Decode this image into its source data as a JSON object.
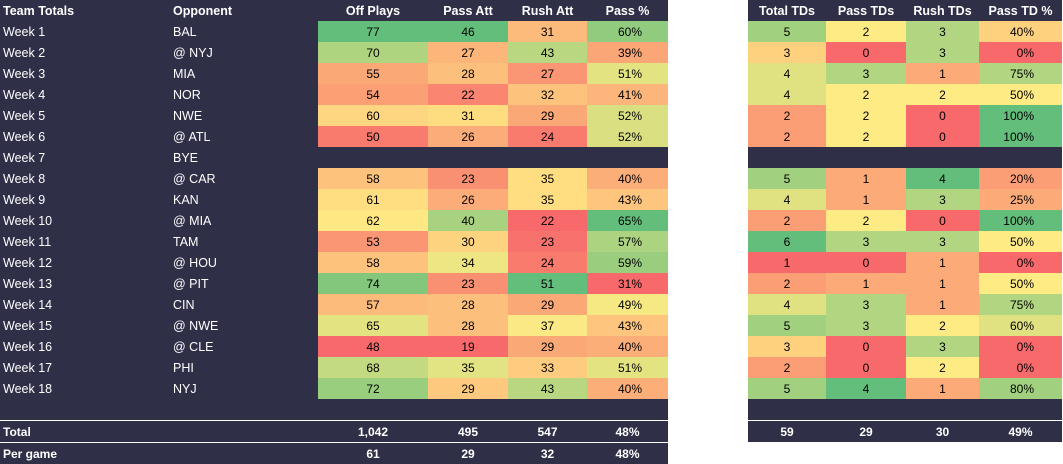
{
  "headers": {
    "team": "Team Totals",
    "opponent": "Opponent",
    "off_plays": "Off Plays",
    "pass_att": "Pass Att",
    "rush_att": "Rush Att",
    "pass_pct": "Pass %",
    "total_tds": "Total TDs",
    "pass_tds": "Pass TDs",
    "rush_tds": "Rush TDs",
    "pass_td_pct": "Pass TD %"
  },
  "colors": {
    "background": "#2f2f48",
    "scale_red": "#f8696b",
    "scale_yellow": "#ffeb84",
    "scale_green": "#63be7b"
  },
  "rows": [
    {
      "week": "Week 1",
      "opp": "BAL",
      "off_plays": "77",
      "pass_att": "46",
      "rush_att": "31",
      "pass_pct": "60%",
      "total_tds": "5",
      "pass_tds": "2",
      "rush_tds": "3",
      "pass_td_pct": "40%",
      "v": [
        77,
        46,
        31,
        60,
        5,
        2,
        3,
        40
      ]
    },
    {
      "week": "Week 2",
      "opp": "@ NYJ",
      "off_plays": "70",
      "pass_att": "27",
      "rush_att": "43",
      "pass_pct": "39%",
      "total_tds": "3",
      "pass_tds": "0",
      "rush_tds": "3",
      "pass_td_pct": "0%",
      "v": [
        70,
        27,
        43,
        39,
        3,
        0,
        3,
        0
      ]
    },
    {
      "week": "Week 3",
      "opp": "MIA",
      "off_plays": "55",
      "pass_att": "28",
      "rush_att": "27",
      "pass_pct": "51%",
      "total_tds": "4",
      "pass_tds": "3",
      "rush_tds": "1",
      "pass_td_pct": "75%",
      "v": [
        55,
        28,
        27,
        51,
        4,
        3,
        1,
        75
      ]
    },
    {
      "week": "Week 4",
      "opp": "NOR",
      "off_plays": "54",
      "pass_att": "22",
      "rush_att": "32",
      "pass_pct": "41%",
      "total_tds": "4",
      "pass_tds": "2",
      "rush_tds": "2",
      "pass_td_pct": "50%",
      "v": [
        54,
        22,
        32,
        41,
        4,
        2,
        2,
        50
      ]
    },
    {
      "week": "Week 5",
      "opp": "NWE",
      "off_plays": "60",
      "pass_att": "31",
      "rush_att": "29",
      "pass_pct": "52%",
      "total_tds": "2",
      "pass_tds": "2",
      "rush_tds": "0",
      "pass_td_pct": "100%",
      "v": [
        60,
        31,
        29,
        52,
        2,
        2,
        0,
        100
      ]
    },
    {
      "week": "Week 6",
      "opp": "@ ATL",
      "off_plays": "50",
      "pass_att": "26",
      "rush_att": "24",
      "pass_pct": "52%",
      "total_tds": "2",
      "pass_tds": "2",
      "rush_tds": "0",
      "pass_td_pct": "100%",
      "v": [
        50,
        26,
        24,
        52,
        2,
        2,
        0,
        100
      ]
    },
    {
      "week": "Week 7",
      "opp": "BYE",
      "bye": true
    },
    {
      "week": "Week 8",
      "opp": "@ CAR",
      "off_plays": "58",
      "pass_att": "23",
      "rush_att": "35",
      "pass_pct": "40%",
      "total_tds": "5",
      "pass_tds": "1",
      "rush_tds": "4",
      "pass_td_pct": "20%",
      "v": [
        58,
        23,
        35,
        40,
        5,
        1,
        4,
        20
      ]
    },
    {
      "week": "Week 9",
      "opp": "KAN",
      "off_plays": "61",
      "pass_att": "26",
      "rush_att": "35",
      "pass_pct": "43%",
      "total_tds": "4",
      "pass_tds": "1",
      "rush_tds": "3",
      "pass_td_pct": "25%",
      "v": [
        61,
        26,
        35,
        43,
        4,
        1,
        3,
        25
      ]
    },
    {
      "week": "Week 10",
      "opp": "@ MIA",
      "off_plays": "62",
      "pass_att": "40",
      "rush_att": "22",
      "pass_pct": "65%",
      "total_tds": "2",
      "pass_tds": "2",
      "rush_tds": "0",
      "pass_td_pct": "100%",
      "v": [
        62,
        40,
        22,
        65,
        2,
        2,
        0,
        100
      ]
    },
    {
      "week": "Week 11",
      "opp": "TAM",
      "off_plays": "53",
      "pass_att": "30",
      "rush_att": "23",
      "pass_pct": "57%",
      "total_tds": "6",
      "pass_tds": "3",
      "rush_tds": "3",
      "pass_td_pct": "50%",
      "v": [
        53,
        30,
        23,
        57,
        6,
        3,
        3,
        50
      ]
    },
    {
      "week": "Week 12",
      "opp": "@ HOU",
      "off_plays": "58",
      "pass_att": "34",
      "rush_att": "24",
      "pass_pct": "59%",
      "total_tds": "1",
      "pass_tds": "0",
      "rush_tds": "1",
      "pass_td_pct": "0%",
      "v": [
        58,
        34,
        24,
        59,
        1,
        0,
        1,
        0
      ]
    },
    {
      "week": "Week 13",
      "opp": "@ PIT",
      "off_plays": "74",
      "pass_att": "23",
      "rush_att": "51",
      "pass_pct": "31%",
      "total_tds": "2",
      "pass_tds": "1",
      "rush_tds": "1",
      "pass_td_pct": "50%",
      "v": [
        74,
        23,
        51,
        31,
        2,
        1,
        1,
        50
      ]
    },
    {
      "week": "Week 14",
      "opp": "CIN",
      "off_plays": "57",
      "pass_att": "28",
      "rush_att": "29",
      "pass_pct": "49%",
      "total_tds": "4",
      "pass_tds": "3",
      "rush_tds": "1",
      "pass_td_pct": "75%",
      "v": [
        57,
        28,
        29,
        49,
        4,
        3,
        1,
        75
      ]
    },
    {
      "week": "Week 15",
      "opp": "@ NWE",
      "off_plays": "65",
      "pass_att": "28",
      "rush_att": "37",
      "pass_pct": "43%",
      "total_tds": "5",
      "pass_tds": "3",
      "rush_tds": "2",
      "pass_td_pct": "60%",
      "v": [
        65,
        28,
        37,
        43,
        5,
        3,
        2,
        60
      ]
    },
    {
      "week": "Week 16",
      "opp": "@ CLE",
      "off_plays": "48",
      "pass_att": "19",
      "rush_att": "29",
      "pass_pct": "40%",
      "total_tds": "3",
      "pass_tds": "0",
      "rush_tds": "3",
      "pass_td_pct": "0%",
      "v": [
        48,
        19,
        29,
        40,
        3,
        0,
        3,
        0
      ]
    },
    {
      "week": "Week 17",
      "opp": "PHI",
      "off_plays": "68",
      "pass_att": "35",
      "rush_att": "33",
      "pass_pct": "51%",
      "total_tds": "2",
      "pass_tds": "0",
      "rush_tds": "2",
      "pass_td_pct": "0%",
      "v": [
        68,
        35,
        33,
        51,
        2,
        0,
        2,
        0
      ]
    },
    {
      "week": "Week 18",
      "opp": "NYJ",
      "off_plays": "72",
      "pass_att": "29",
      "rush_att": "43",
      "pass_pct": "40%",
      "total_tds": "5",
      "pass_tds": "4",
      "rush_tds": "1",
      "pass_td_pct": "80%",
      "v": [
        72,
        29,
        43,
        40,
        5,
        4,
        1,
        80
      ]
    }
  ],
  "total": {
    "label": "Total",
    "off_plays": "1,042",
    "pass_att": "495",
    "rush_att": "547",
    "pass_pct": "48%",
    "total_tds": "59",
    "pass_tds": "29",
    "rush_tds": "30",
    "pass_td_pct": "49%"
  },
  "per_game": {
    "label": "Per game",
    "off_plays": "61",
    "pass_att": "29",
    "rush_att": "32",
    "pass_pct": "48%"
  }
}
